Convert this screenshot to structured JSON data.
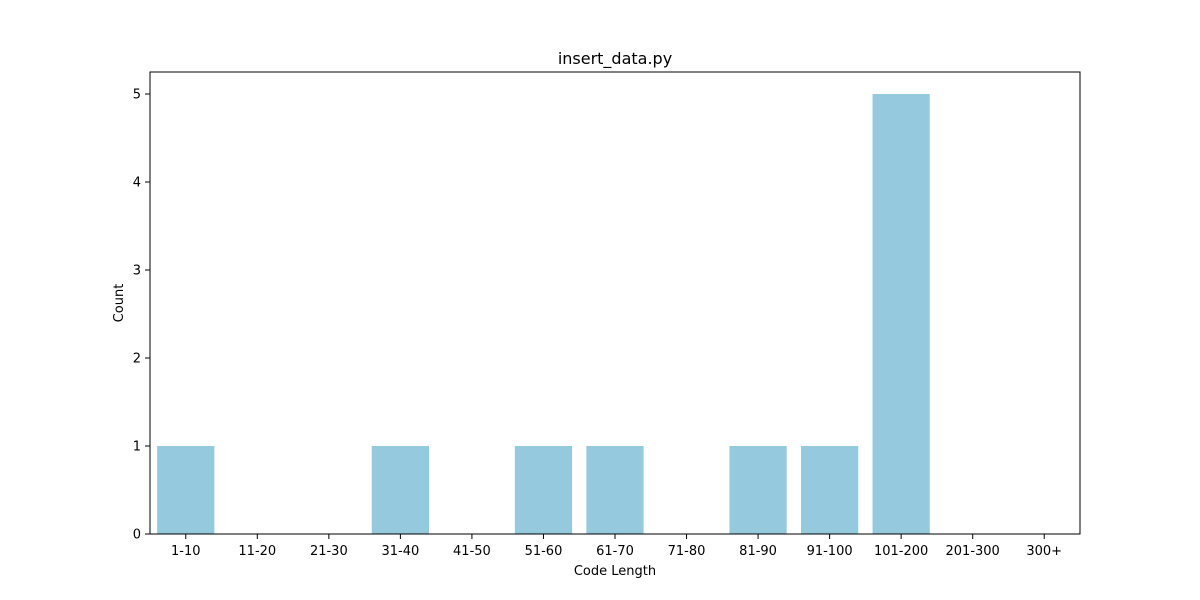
{
  "chart_data": {
    "type": "bar",
    "title": "insert_data.py",
    "xlabel": "Code Length",
    "ylabel": "Count",
    "categories": [
      "1-10",
      "11-20",
      "21-30",
      "31-40",
      "41-50",
      "51-60",
      "61-70",
      "71-80",
      "81-90",
      "91-100",
      "101-200",
      "201-300",
      "300+"
    ],
    "values": [
      1,
      0,
      0,
      1,
      0,
      1,
      1,
      0,
      1,
      1,
      5,
      0,
      0
    ],
    "ylim": [
      0,
      5.25
    ],
    "yticks": [
      0,
      1,
      2,
      3,
      4,
      5
    ],
    "grid": false,
    "legend": "none",
    "bar_color": "#95c9de"
  }
}
